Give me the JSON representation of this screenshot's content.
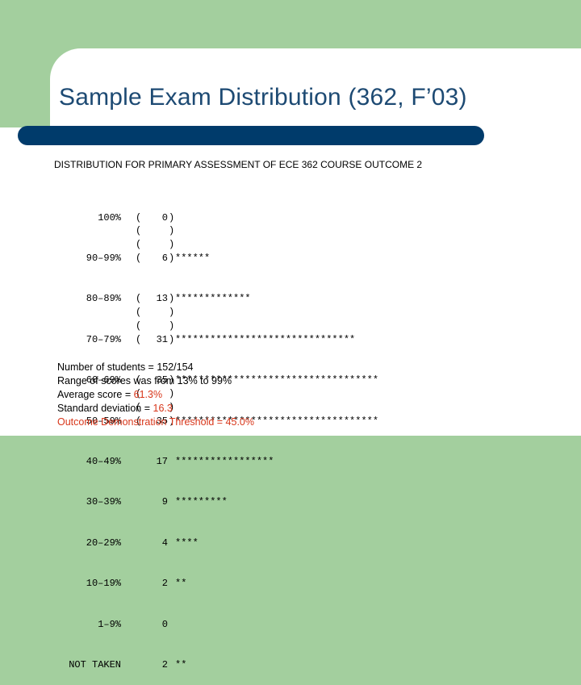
{
  "slide": {
    "title": "Sample Exam Distribution (362, F’03)",
    "subtitle": "DISTRIBUTION FOR PRIMARY ASSESSMENT OF ECE 362 COURSE OUTCOME  2"
  },
  "distribution": [
    {
      "range": "100%",
      "count": "0",
      "stars": ""
    },
    {
      "range": "90–99%",
      "count": "6",
      "stars": "******"
    },
    {
      "range": "80–89%",
      "count": "13",
      "stars": "*************"
    },
    {
      "range": "70–79%",
      "count": "31",
      "stars": "*******************************"
    },
    {
      "range": "60–69%",
      "count": "35",
      "stars": "***********************************"
    },
    {
      "range": "50–59%",
      "count": "35",
      "stars": "***********************************"
    },
    {
      "range": "40–49%",
      "count": "17",
      "stars": "*****************"
    },
    {
      "range": "30–39%",
      "count": "9",
      "stars": "*********"
    },
    {
      "range": "20–29%",
      "count": "4",
      "stars": "****"
    },
    {
      "range": "10–19%",
      "count": "2",
      "stars": "**"
    },
    {
      "range": "1–9%",
      "count": "0",
      "stars": ""
    },
    {
      "range": "NOT TAKEN",
      "count": "2",
      "stars": "**"
    }
  ],
  "stats": {
    "students": "Number of students = 152/154",
    "range": "Range of scores was from  13%  to  99%",
    "avg_label": "Average score = ",
    "avg_value": "61.3%",
    "sd_label": "Standard deviation = ",
    "sd_value": "16.3",
    "threshold": "Outcome Demonstration Threshold =  45.0%"
  },
  "colors": {
    "background_green": "#a3cf9e",
    "title_text": "#1d4a73",
    "title_bar": "#003b6b",
    "highlight": "#d8361a"
  }
}
